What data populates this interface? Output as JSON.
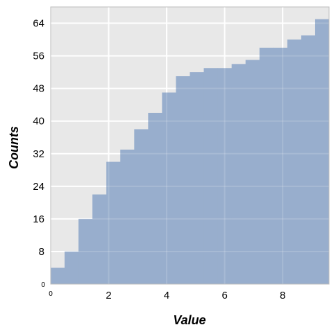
{
  "chart_data": {
    "type": "bar",
    "subtype": "cumulative-step-histogram",
    "xlabel": "Value",
    "ylabel": "Counts",
    "xlim": [
      0,
      9.6
    ],
    "ylim": [
      0,
      68
    ],
    "x_ticks": [
      {
        "value": 0,
        "label": "0"
      },
      {
        "value": 2,
        "label": "2"
      },
      {
        "value": 4,
        "label": "4"
      },
      {
        "value": 6,
        "label": "6"
      },
      {
        "value": 8,
        "label": "8"
      }
    ],
    "y_ticks": [
      {
        "value": 0,
        "label": "0"
      },
      {
        "value": 8,
        "label": "8"
      },
      {
        "value": 16,
        "label": "16"
      },
      {
        "value": 24,
        "label": "24"
      },
      {
        "value": 32,
        "label": "32"
      },
      {
        "value": 40,
        "label": "40"
      },
      {
        "value": 48,
        "label": "48"
      },
      {
        "value": 56,
        "label": "56"
      },
      {
        "value": 64,
        "label": "64"
      }
    ],
    "bin_edges": [
      0,
      0.48,
      0.96,
      1.44,
      1.92,
      2.4,
      2.88,
      3.36,
      3.84,
      4.32,
      4.8,
      5.28,
      5.76,
      6.24,
      6.72,
      7.2,
      7.68,
      8.16,
      8.64,
      9.12,
      9.6
    ],
    "values": [
      4,
      8,
      16,
      22,
      30,
      33,
      38,
      42,
      47,
      51,
      52,
      53,
      53,
      54,
      55,
      58,
      58,
      60,
      61,
      65
    ],
    "grid": true,
    "colors": {
      "bar_fill": "#98aecd",
      "plot_background": "#e8e8e8",
      "grid": "#ffffff",
      "frame": "#bcbcbc"
    }
  }
}
